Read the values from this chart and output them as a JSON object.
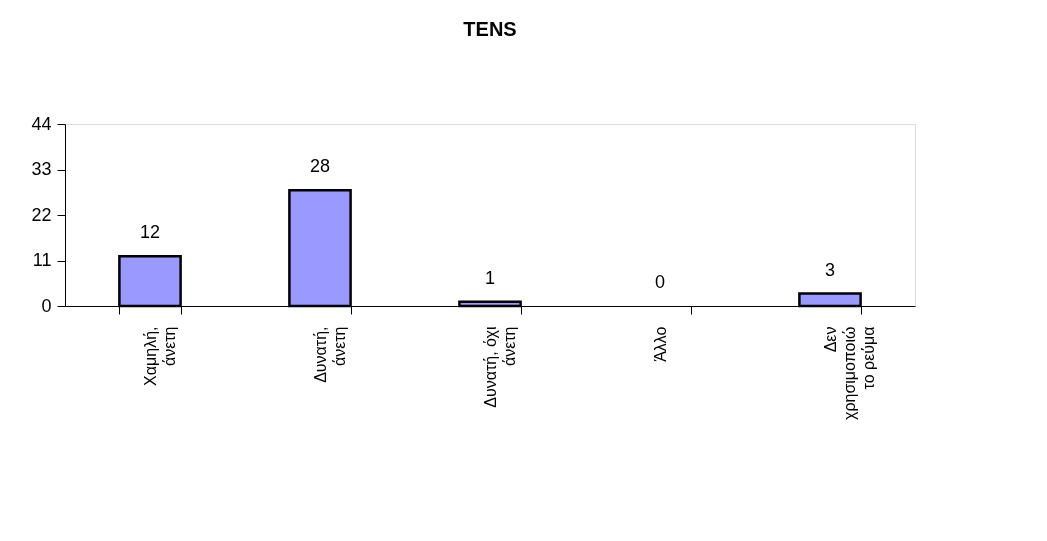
{
  "chart_data": {
    "type": "bar",
    "title": "TENS",
    "categories": [
      "Χαμηλή,\nάνετη",
      "Δυνατή,\nάνετη",
      "Δυνατή, όχι\nάνετη",
      "Άλλο",
      "Δεν\nχρησιμοποιώ\nτο ρεύμα"
    ],
    "values": [
      12,
      28,
      1,
      0,
      3
    ],
    "color": "#9999ff",
    "ylim": [
      0,
      44
    ],
    "yticks": [
      0,
      11,
      22,
      33,
      44
    ],
    "grid": false,
    "data_labels": true
  }
}
